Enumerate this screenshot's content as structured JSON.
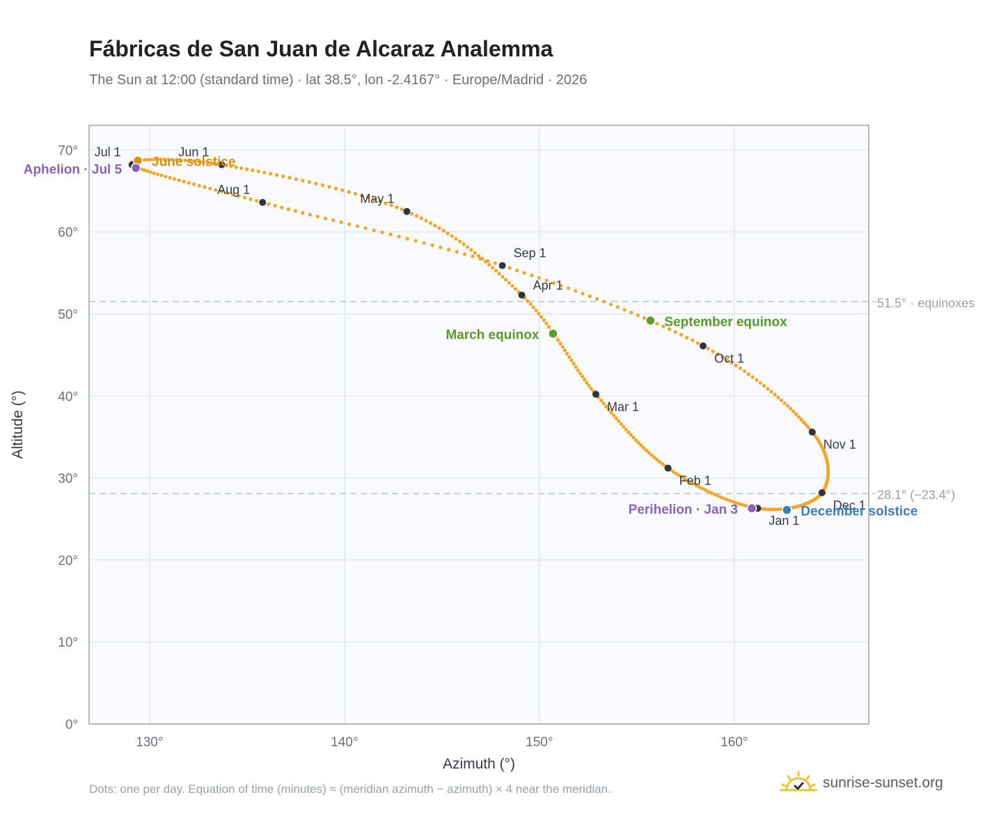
{
  "title": "Fábricas de San Juan de Alcaraz Analemma",
  "subtitle": "The Sun at 12:00 (standard time) · lat 38.5°, lon -2.4167° · Europe/Madrid · 2026",
  "footnote": "Dots: one per day. Equation of time (minutes) ≈ (meridian azimuth − azimuth) × 4 near the meridian.",
  "brand": {
    "name": "sunrise-sunset.org",
    "icon": "sun-logo-icon"
  },
  "colors": {
    "curve": "#f2a527",
    "month_marker": "#2f3440",
    "equinox": "#5a9a2a",
    "june_solstice": "#d9900f",
    "december_solstice": "#3a7cc2",
    "apsis": "#8a63b8",
    "plot_bg": "#f8fafd",
    "grid": "#e3e8ef",
    "axis_border": "#9aa5b3",
    "ref_line": "#b8c3cf"
  },
  "chart_data": {
    "type": "scatter",
    "xlabel": "Azimuth (°)",
    "ylabel": "Altitude (°)",
    "xlim": [
      126.9,
      166.9
    ],
    "ylim": [
      0,
      73
    ],
    "xticks": [
      130,
      140,
      150,
      160
    ],
    "xtick_labels": [
      "130°",
      "140°",
      "150°",
      "160°"
    ],
    "yticks": [
      0,
      10,
      20,
      30,
      40,
      50,
      60,
      70
    ],
    "ytick_labels": [
      "0°",
      "10°",
      "20°",
      "30°",
      "40°",
      "50°",
      "60°",
      "70°"
    ],
    "grid": true,
    "daily_path_note": "one dot per day along the analemma, passing through the month markers in order",
    "month_markers": [
      {
        "label": "Jan 1",
        "az": 161.2,
        "alt": 26.3
      },
      {
        "label": "Feb 1",
        "az": 156.6,
        "alt": 31.2
      },
      {
        "label": "Mar 1",
        "az": 152.9,
        "alt": 40.2
      },
      {
        "label": "Apr 1",
        "az": 149.1,
        "alt": 52.3
      },
      {
        "label": "May 1",
        "az": 143.2,
        "alt": 62.5
      },
      {
        "label": "Jun 1",
        "az": 133.7,
        "alt": 68.2
      },
      {
        "label": "Jul 1",
        "az": 129.1,
        "alt": 68.2
      },
      {
        "label": "Aug 1",
        "az": 135.8,
        "alt": 63.6
      },
      {
        "label": "Sep 1",
        "az": 148.1,
        "alt": 55.9
      },
      {
        "label": "Oct 1",
        "az": 158.4,
        "alt": 46.1
      },
      {
        "label": "Nov 1",
        "az": 164.0,
        "alt": 35.6
      },
      {
        "label": "Dec 1",
        "az": 164.5,
        "alt": 28.2
      }
    ],
    "special_points": [
      {
        "label": "March equinox",
        "az": 150.7,
        "alt": 47.6,
        "kind": "equinox"
      },
      {
        "label": "September equinox",
        "az": 155.7,
        "alt": 49.2,
        "kind": "equinox"
      },
      {
        "label": "June solstice",
        "az": 129.4,
        "alt": 68.7,
        "kind": "june_solstice"
      },
      {
        "label": "December solstice",
        "az": 162.7,
        "alt": 26.1,
        "kind": "december_solstice"
      },
      {
        "label": "Aphelion · Jul 5",
        "az": 129.3,
        "alt": 67.8,
        "kind": "apsis"
      },
      {
        "label": "Perihelion · Jan 3",
        "az": 160.9,
        "alt": 26.3,
        "kind": "apsis"
      }
    ],
    "reference_lines": [
      {
        "alt": 51.5,
        "label": "51.5° · equinoxes"
      },
      {
        "alt": 28.1,
        "label": "28.1° (−23.4°)"
      }
    ]
  }
}
